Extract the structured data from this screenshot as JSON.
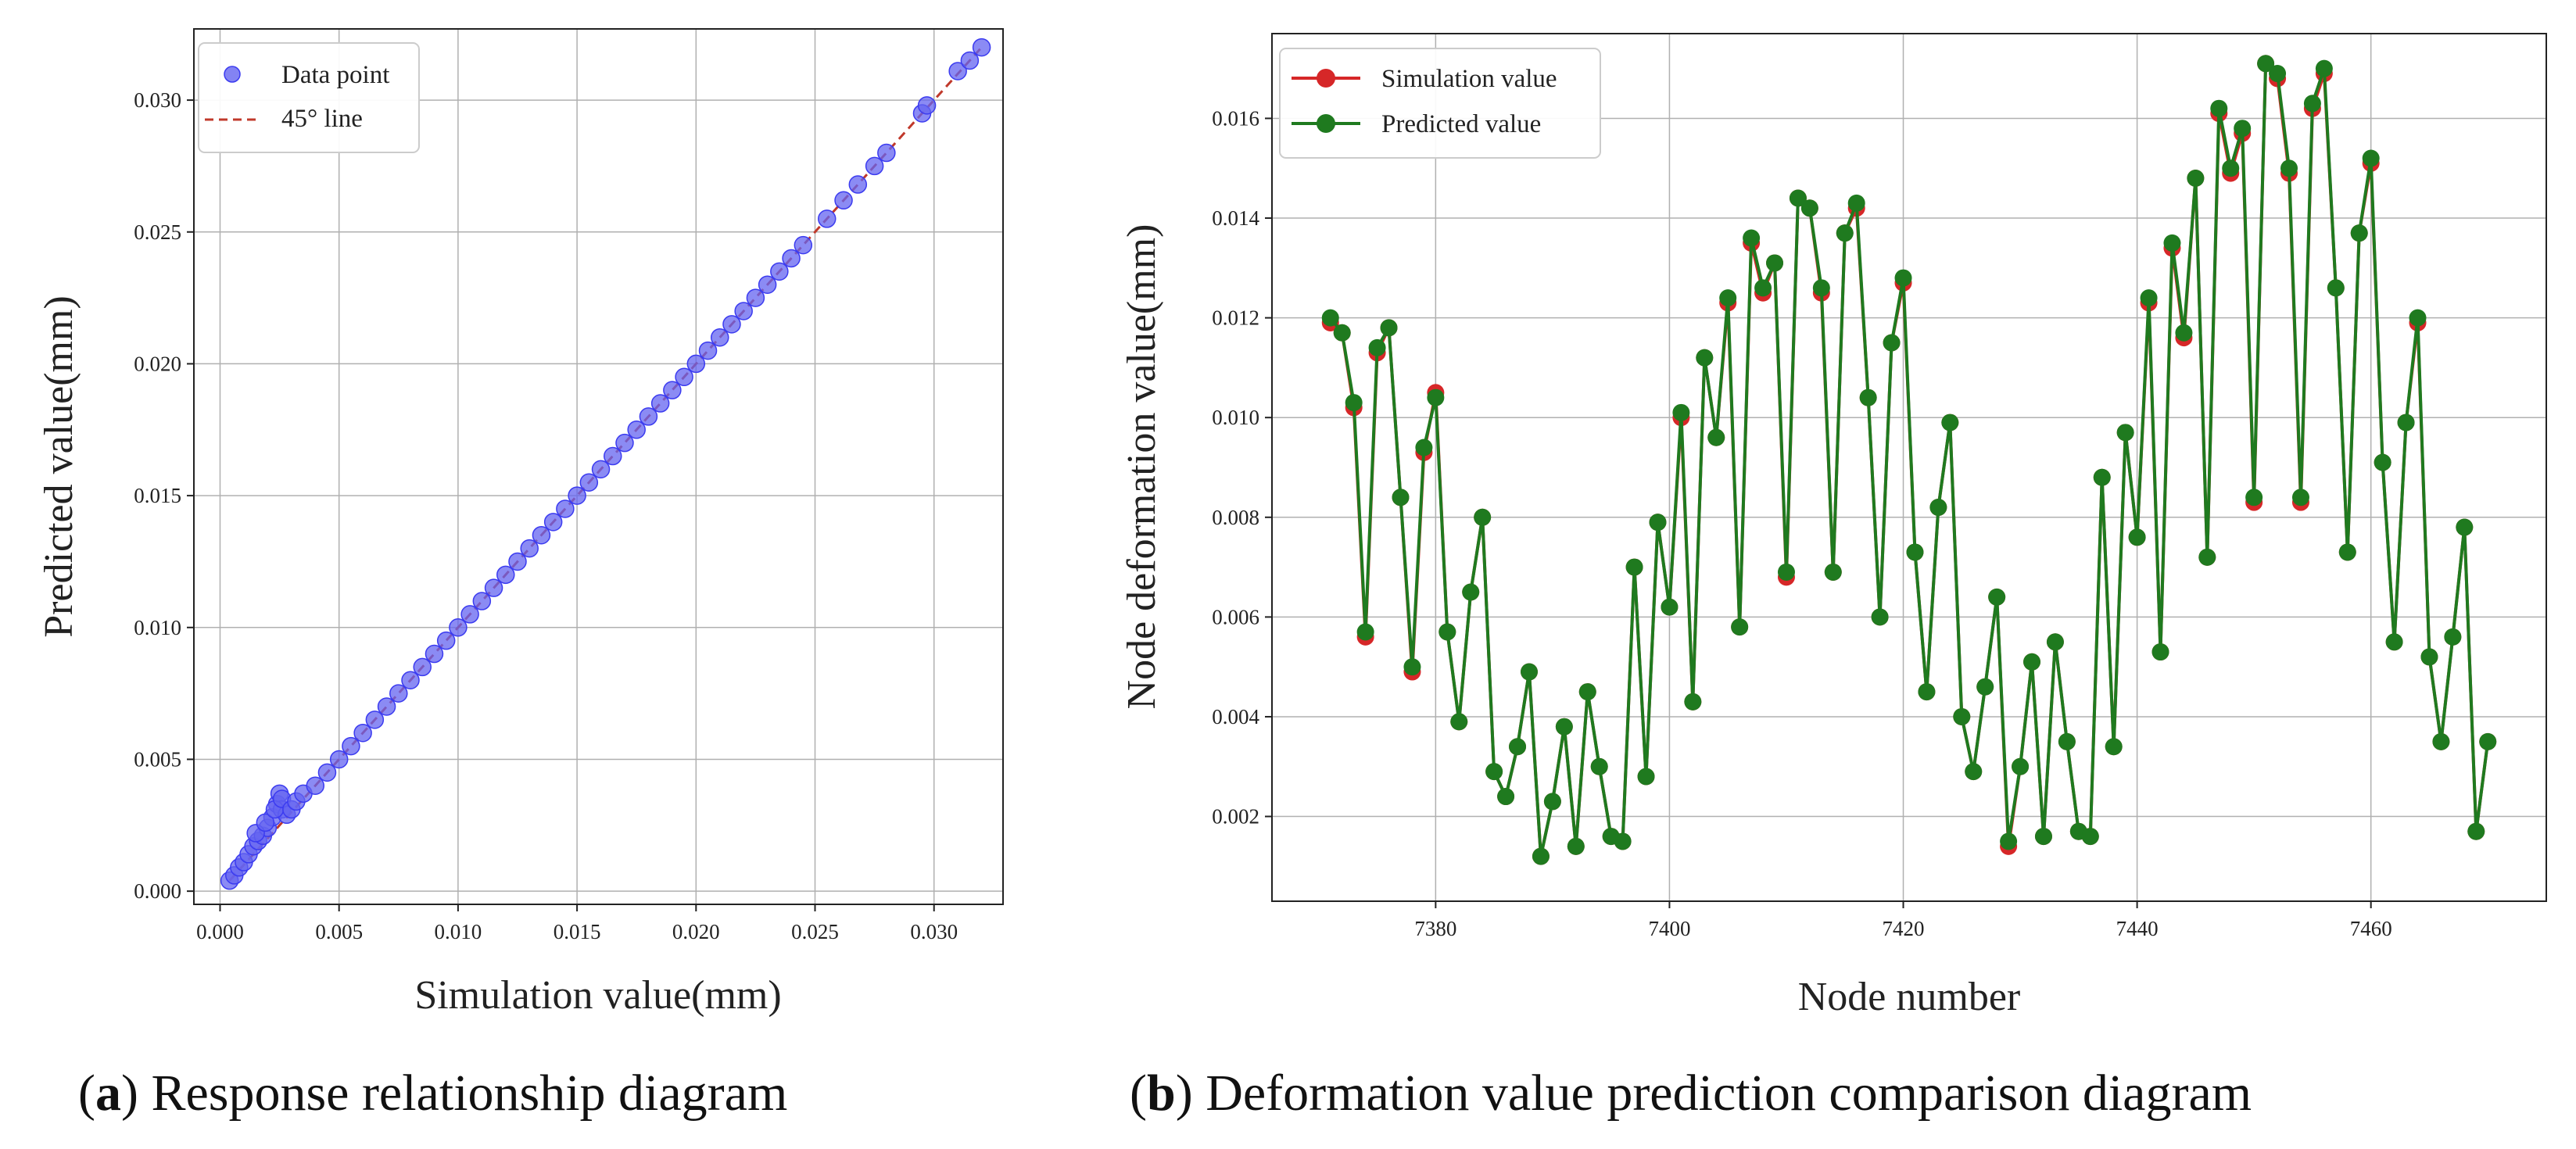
{
  "chart_data": [
    {
      "id": "a",
      "type": "scatter",
      "xlabel": "Simulation value(mm)",
      "ylabel": "Predicted value(mm)",
      "xlim": [
        -0.0011,
        0.0329
      ],
      "ylim": [
        -0.0005,
        0.0327
      ],
      "xticks": [
        0.0,
        0.005,
        0.01,
        0.015,
        0.02,
        0.025,
        0.03
      ],
      "xtick_labels": [
        "0.000",
        "0.005",
        "0.010",
        "0.015",
        "0.020",
        "0.025",
        "0.030"
      ],
      "yticks": [
        0.0,
        0.005,
        0.01,
        0.015,
        0.02,
        0.025,
        0.03
      ],
      "ytick_labels": [
        "0.000",
        "0.005",
        "0.010",
        "0.015",
        "0.020",
        "0.025",
        "0.030"
      ],
      "grid": true,
      "legend_position": "top-left",
      "legend": [
        "Data point",
        "45° line"
      ],
      "point_color": "#3b3bf0",
      "line_color": "#c0392b",
      "reference_line": [
        [
          0.0004,
          0.0004
        ],
        [
          0.032,
          0.032
        ]
      ],
      "points": [
        [
          0.0004,
          0.0004
        ],
        [
          0.0006,
          0.0006
        ],
        [
          0.0008,
          0.0009
        ],
        [
          0.001,
          0.0011
        ],
        [
          0.0012,
          0.0014
        ],
        [
          0.0014,
          0.0017
        ],
        [
          0.0016,
          0.0019
        ],
        [
          0.0018,
          0.0021
        ],
        [
          0.002,
          0.0024
        ],
        [
          0.0022,
          0.0028
        ],
        [
          0.0024,
          0.0033
        ],
        [
          0.0025,
          0.0037
        ],
        [
          0.0026,
          0.0031
        ],
        [
          0.0028,
          0.0029
        ],
        [
          0.0015,
          0.0022
        ],
        [
          0.0019,
          0.0026
        ],
        [
          0.0023,
          0.0031
        ],
        [
          0.0026,
          0.0035
        ],
        [
          0.003,
          0.0031
        ],
        [
          0.0032,
          0.0034
        ],
        [
          0.0035,
          0.0037
        ],
        [
          0.004,
          0.004
        ],
        [
          0.0045,
          0.0045
        ],
        [
          0.005,
          0.005
        ],
        [
          0.0055,
          0.0055
        ],
        [
          0.006,
          0.006
        ],
        [
          0.0065,
          0.0065
        ],
        [
          0.007,
          0.007
        ],
        [
          0.0075,
          0.0075
        ],
        [
          0.008,
          0.008
        ],
        [
          0.0085,
          0.0085
        ],
        [
          0.009,
          0.009
        ],
        [
          0.0095,
          0.0095
        ],
        [
          0.01,
          0.01
        ],
        [
          0.0105,
          0.0105
        ],
        [
          0.011,
          0.011
        ],
        [
          0.0115,
          0.0115
        ],
        [
          0.012,
          0.012
        ],
        [
          0.0125,
          0.0125
        ],
        [
          0.013,
          0.013
        ],
        [
          0.0135,
          0.0135
        ],
        [
          0.014,
          0.014
        ],
        [
          0.0145,
          0.0145
        ],
        [
          0.015,
          0.015
        ],
        [
          0.0155,
          0.0155
        ],
        [
          0.016,
          0.016
        ],
        [
          0.0165,
          0.0165
        ],
        [
          0.017,
          0.017
        ],
        [
          0.0175,
          0.0175
        ],
        [
          0.018,
          0.018
        ],
        [
          0.0185,
          0.0185
        ],
        [
          0.019,
          0.019
        ],
        [
          0.0195,
          0.0195
        ],
        [
          0.02,
          0.02
        ],
        [
          0.0205,
          0.0205
        ],
        [
          0.021,
          0.021
        ],
        [
          0.0215,
          0.0215
        ],
        [
          0.022,
          0.022
        ],
        [
          0.0225,
          0.0225
        ],
        [
          0.023,
          0.023
        ],
        [
          0.0235,
          0.0235
        ],
        [
          0.024,
          0.024
        ],
        [
          0.0245,
          0.0245
        ],
        [
          0.0255,
          0.0255
        ],
        [
          0.0262,
          0.0262
        ],
        [
          0.0268,
          0.0268
        ],
        [
          0.0275,
          0.0275
        ],
        [
          0.028,
          0.028
        ],
        [
          0.0295,
          0.0295
        ],
        [
          0.0297,
          0.0298
        ],
        [
          0.031,
          0.0311
        ],
        [
          0.0315,
          0.0315
        ],
        [
          0.032,
          0.032
        ]
      ]
    },
    {
      "id": "b",
      "type": "line",
      "xlabel": "Node number",
      "ylabel": "Node deformation value(mm)",
      "xlim": [
        7366,
        7475
      ],
      "ylim": [
        0.0003,
        0.0177
      ],
      "xticks": [
        7380,
        7400,
        7420,
        7440,
        7460
      ],
      "xtick_labels": [
        "7380",
        "7400",
        "7420",
        "7440",
        "7460"
      ],
      "yticks": [
        0.002,
        0.004,
        0.006,
        0.008,
        0.01,
        0.012,
        0.014,
        0.016
      ],
      "ytick_labels": [
        "0.002",
        "0.004",
        "0.006",
        "0.008",
        "0.010",
        "0.012",
        "0.014",
        "0.016"
      ],
      "grid": true,
      "legend_position": "top-left",
      "x_start": 7371,
      "series": [
        {
          "name": "Simulation value",
          "color": "#d62728",
          "values": [
            0.0119,
            0.0117,
            0.0102,
            0.0056,
            0.0113,
            0.0118,
            0.0084,
            0.0049,
            0.0093,
            0.0105,
            0.0057,
            0.0039,
            0.0065,
            0.008,
            0.0029,
            0.0024,
            0.0034,
            0.0049,
            0.0012,
            0.0023,
            0.0038,
            0.0014,
            0.0045,
            0.003,
            0.0016,
            0.0015,
            0.007,
            0.0028,
            0.0079,
            0.0062,
            0.01,
            0.0043,
            0.0112,
            0.0096,
            0.0123,
            0.0058,
            0.0135,
            0.0125,
            0.0131,
            0.0068,
            0.0144,
            0.0142,
            0.0125,
            0.0069,
            0.0137,
            0.0142,
            0.0104,
            0.006,
            0.0115,
            0.0127,
            0.0073,
            0.0045,
            0.0082,
            0.0099,
            0.004,
            0.0029,
            0.0046,
            0.0064,
            0.0014,
            0.003,
            0.0051,
            0.0016,
            0.0055,
            0.0035,
            0.0017,
            0.0016,
            0.0088,
            0.0034,
            0.0097,
            0.0076,
            0.0123,
            0.0053,
            0.0134,
            0.0116,
            0.0148,
            0.0072,
            0.0161,
            0.0149,
            0.0157,
            0.0083,
            0.0171,
            0.0168,
            0.0149,
            0.0083,
            0.0162,
            0.0169,
            0.0126,
            0.0073,
            0.0137,
            0.0151,
            0.0091,
            0.0055,
            0.0099,
            0.0119,
            0.0052,
            0.0035,
            0.0056,
            0.0078,
            0.0017,
            0.0035
          ]
        },
        {
          "name": "Predicted value",
          "color": "#1f7a1f",
          "values": [
            0.012,
            0.0117,
            0.0103,
            0.0057,
            0.0114,
            0.0118,
            0.0084,
            0.005,
            0.0094,
            0.0104,
            0.0057,
            0.0039,
            0.0065,
            0.008,
            0.0029,
            0.0024,
            0.0034,
            0.0049,
            0.0012,
            0.0023,
            0.0038,
            0.0014,
            0.0045,
            0.003,
            0.0016,
            0.0015,
            0.007,
            0.0028,
            0.0079,
            0.0062,
            0.0101,
            0.0043,
            0.0112,
            0.0096,
            0.0124,
            0.0058,
            0.0136,
            0.0126,
            0.0131,
            0.0069,
            0.0144,
            0.0142,
            0.0126,
            0.0069,
            0.0137,
            0.0143,
            0.0104,
            0.006,
            0.0115,
            0.0128,
            0.0073,
            0.0045,
            0.0082,
            0.0099,
            0.004,
            0.0029,
            0.0046,
            0.0064,
            0.0015,
            0.003,
            0.0051,
            0.0016,
            0.0055,
            0.0035,
            0.0017,
            0.0016,
            0.0088,
            0.0034,
            0.0097,
            0.0076,
            0.0124,
            0.0053,
            0.0135,
            0.0117,
            0.0148,
            0.0072,
            0.0162,
            0.015,
            0.0158,
            0.0084,
            0.0171,
            0.0169,
            0.015,
            0.0084,
            0.0163,
            0.017,
            0.0126,
            0.0073,
            0.0137,
            0.0152,
            0.0091,
            0.0055,
            0.0099,
            0.012,
            0.0052,
            0.0035,
            0.0056,
            0.0078,
            0.0017,
            0.0035
          ]
        }
      ]
    }
  ],
  "captions": {
    "a_letter": "a",
    "a_text": "Response relationship diagram",
    "b_letter": "b",
    "b_text": "Deformation value prediction comparison diagram"
  }
}
